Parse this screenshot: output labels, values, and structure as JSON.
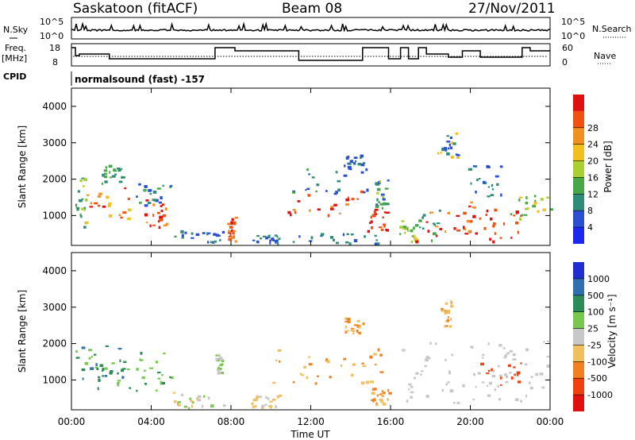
{
  "header": {
    "station": "Saskatoon (fitACF)",
    "beam": "Beam 08",
    "date": "27/Nov/2011"
  },
  "panels": {
    "nsky_label": "N.Sky",
    "nsky_ticks": [
      "10^5",
      "10^0"
    ],
    "nsearch_label": "N.Search",
    "freq_label": "Freq.",
    "freq_unit": "[MHz]",
    "freq_ticks": [
      "18",
      "8"
    ],
    "nave_ticks": [
      "60",
      "0"
    ],
    "nave_label": "Nave",
    "cpid_label": "CPID",
    "cpid_text": "normalsound (fast) -157"
  },
  "chart_data": [
    {
      "type": "heatmap",
      "title": "Power",
      "ylabel": "Slant Range [km]",
      "xlabel": "Time UT",
      "x_ticks": [
        "00:00",
        "04:00",
        "08:00",
        "12:00",
        "16:00",
        "20:00",
        "00:00"
      ],
      "x_range_hours": [
        0,
        24
      ],
      "ylim": [
        180,
        4500
      ],
      "y_ticks": [
        1000,
        2000,
        3000,
        4000
      ],
      "colorbar": {
        "label": "Power [dB]",
        "ticks": [
          "4",
          "8",
          "12",
          "16",
          "20",
          "24",
          "28"
        ],
        "colors": [
          "#1a28f0",
          "#2a4fd0",
          "#2f8c78",
          "#48a848",
          "#a8d030",
          "#f0c020",
          "#f09020",
          "#f05010",
          "#e01010"
        ]
      },
      "grid": false
    },
    {
      "type": "heatmap",
      "title": "Velocity",
      "ylabel": "Slant Range [km]",
      "xlabel": "Time UT",
      "x_ticks": [
        "00:00",
        "04:00",
        "08:00",
        "12:00",
        "16:00",
        "20:00",
        "00:00"
      ],
      "x_range_hours": [
        0,
        24
      ],
      "ylim": [
        180,
        4500
      ],
      "y_ticks": [
        1000,
        2000,
        3000,
        4000
      ],
      "colorbar": {
        "label": "Velocity [m s⁻¹]",
        "ticks": [
          "1000",
          "500",
          "100",
          "25",
          "-25",
          "-100",
          "-500",
          "-1000"
        ],
        "colors": [
          "#2030d0",
          "#3070b0",
          "#2e8b57",
          "#78c850",
          "#c8c8c8",
          "#f0c060",
          "#f08020",
          "#f04010",
          "#e01010"
        ]
      },
      "grid": false
    }
  ]
}
